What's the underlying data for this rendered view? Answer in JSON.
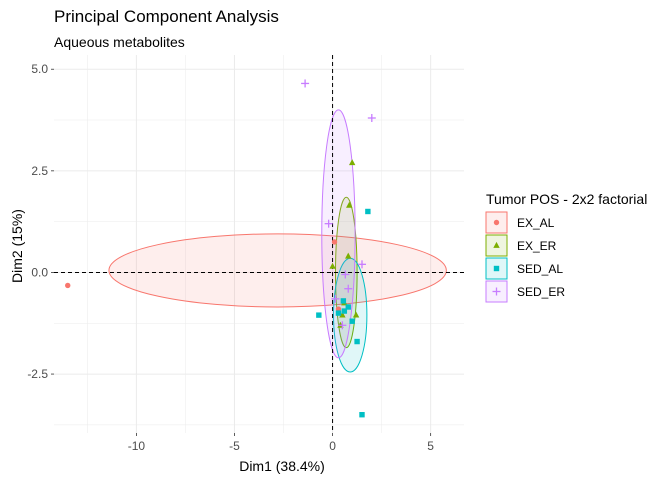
{
  "chart_data": {
    "type": "scatter",
    "title": "Principal Component Analysis",
    "subtitle": "Aqueous metabolites",
    "xlabel": "Dim1 (38.4%)",
    "ylabel": "Dim2 (15%)",
    "xlim": [
      -14.2,
      6.7
    ],
    "ylim": [
      -3.95,
      5.35
    ],
    "xticks": [
      -10,
      -5,
      0,
      5
    ],
    "xtick_labels": [
      "-10",
      "-5",
      "0",
      "5"
    ],
    "yticks": [
      -2.5,
      0.0,
      2.5,
      5.0
    ],
    "ytick_labels": [
      "-2.5",
      "0.0",
      "2.5",
      "5.0"
    ],
    "grid": true,
    "reference_lines": {
      "x": 0,
      "y": 0,
      "style": "dashed"
    },
    "legend": {
      "title": "Tumor POS - 2x2 factorial",
      "placement": "right"
    },
    "series": [
      {
        "name": "EX_AL",
        "color": "#F8766D",
        "marker": "circle",
        "points": [
          [
            -13.5,
            -0.32
          ],
          [
            0.1,
            0.75
          ],
          [
            0.3,
            -0.9
          ]
        ],
        "ellipse": {
          "cx": -2.8,
          "cy": 0.05,
          "rx": 8.6,
          "ry": 0.9
        }
      },
      {
        "name": "EX_ER",
        "color": "#7CAE00",
        "marker": "triangle",
        "points": [
          [
            1.0,
            2.7
          ],
          [
            0.0,
            0.15
          ],
          [
            0.5,
            -1.05
          ],
          [
            0.8,
            0.4
          ],
          [
            1.2,
            -1.05
          ],
          [
            0.6,
            -0.75
          ],
          [
            0.4,
            -1.3
          ],
          [
            0.85,
            1.65
          ]
        ],
        "ellipse": {
          "cx": 0.7,
          "cy": 0.0,
          "rx": 0.55,
          "ry": 1.85
        }
      },
      {
        "name": "SED_AL",
        "color": "#00BFC4",
        "marker": "square",
        "points": [
          [
            1.8,
            1.5
          ],
          [
            -0.7,
            -1.05
          ],
          [
            0.55,
            -0.7
          ],
          [
            0.8,
            -0.85
          ],
          [
            1.0,
            -1.2
          ],
          [
            1.25,
            -1.7
          ],
          [
            1.5,
            -3.5
          ],
          [
            0.3,
            -1.0
          ],
          [
            0.6,
            -0.95
          ]
        ],
        "ellipse": {
          "cx": 0.9,
          "cy": -1.05,
          "rx": 0.85,
          "ry": 1.4
        }
      },
      {
        "name": "SED_ER",
        "color": "#C77CFF",
        "marker": "plus",
        "points": [
          [
            -1.4,
            4.65
          ],
          [
            2.0,
            3.8
          ],
          [
            -0.2,
            1.2
          ],
          [
            1.5,
            0.2
          ],
          [
            0.8,
            -0.4
          ],
          [
            0.5,
            -1.3
          ],
          [
            0.15,
            -0.65
          ],
          [
            0.65,
            -0.05
          ]
        ],
        "ellipse": {
          "cx": 0.3,
          "cy": 0.95,
          "rx": 0.85,
          "ry": 3.05
        }
      }
    ]
  }
}
